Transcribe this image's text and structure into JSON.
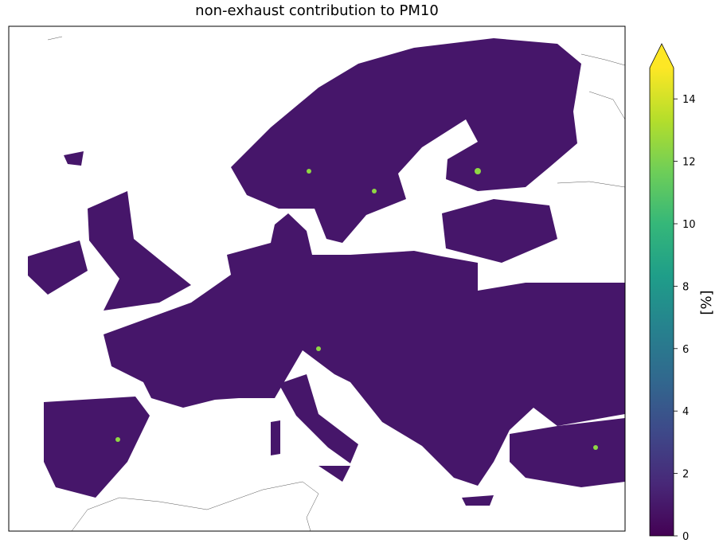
{
  "title": "non-exhaust contribution to PM10",
  "colorbar": {
    "label": "[%]",
    "lim": [
      0,
      15
    ],
    "ticks": [
      0,
      2,
      4,
      6,
      8,
      10,
      12,
      14
    ],
    "extend": "max",
    "colors": [
      "#440154",
      "#482878",
      "#3e4989",
      "#31688e",
      "#26828e",
      "#1f9e89",
      "#35b779",
      "#6ece58",
      "#b5de2b",
      "#fde725"
    ]
  }
}
